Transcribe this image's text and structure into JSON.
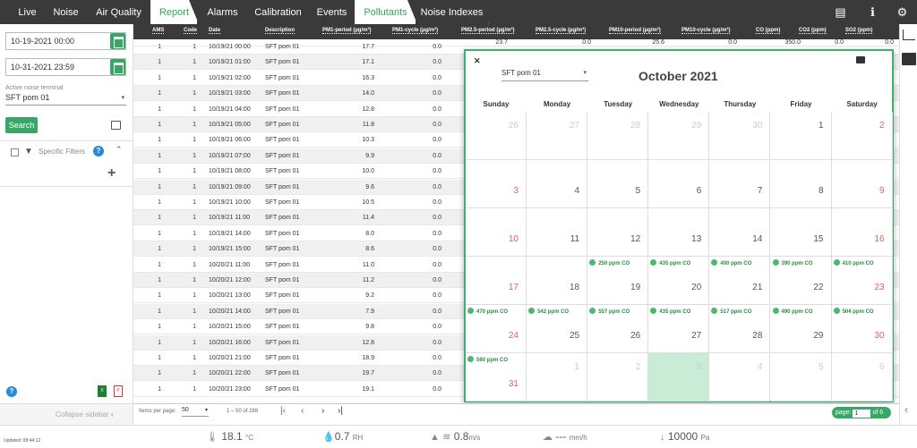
{
  "tabs": [
    {
      "label": "Live"
    },
    {
      "label": "Noise"
    },
    {
      "label": "Air Quality"
    },
    {
      "label": "Report"
    },
    {
      "label": "Alarms"
    },
    {
      "label": "Calibration"
    },
    {
      "label": "Events"
    },
    {
      "label": "Pollutants"
    },
    {
      "label": "Noise Indexes"
    }
  ],
  "active_tabs": [
    "Report",
    "Pollutants"
  ],
  "topbar_icons": [
    "id-card-icon",
    "info-icon",
    "gear-icon"
  ],
  "sidebar": {
    "date_from": "10-19-2021 00:00",
    "date_to": "10-31-2021 23:59",
    "terminal_label": "Active noise terminal",
    "terminal_value": "SFT pom 01",
    "search_label": "Search",
    "filters_label": "Specific Filters",
    "collapse_label": "Collapse sidebar"
  },
  "table": {
    "columns": [
      "AMS",
      "Code",
      "Date",
      "Description",
      "PM1-period (µg/m³)",
      "PM1-cycle (µg/m³)",
      "PM2.5-period (µg/m³)",
      "PM2.5-cycle (µg/m³)",
      "PM10-period (µg/m³)",
      "PM10-cycle (µg/m³)",
      "CO (ppm)",
      "CO2 (ppm)",
      "SO2 (ppm)"
    ],
    "partial_first_row": {
      "pm25_period": "23.7",
      "pm25_cycle": "0.0",
      "pm10_period": "25.6",
      "pm10_cycle": "0.0",
      "co": "350.0",
      "co2": "0.0",
      "so2": "0.0"
    },
    "rows": [
      {
        "ams": "1",
        "code": "1",
        "date": "10/19/21 00:00",
        "desc": "SFT pom 01",
        "pm1p": "17.7",
        "pm1c": "0.0"
      },
      {
        "ams": "1",
        "code": "1",
        "date": "10/19/21 01:00",
        "desc": "SFT pom 01",
        "pm1p": "17.1",
        "pm1c": "0.0"
      },
      {
        "ams": "1",
        "code": "1",
        "date": "10/19/21 02:00",
        "desc": "SFT pom 01",
        "pm1p": "16.3",
        "pm1c": "0.0"
      },
      {
        "ams": "1",
        "code": "1",
        "date": "10/19/21 03:00",
        "desc": "SFT pom 01",
        "pm1p": "14.0",
        "pm1c": "0.0"
      },
      {
        "ams": "1",
        "code": "1",
        "date": "10/19/21 04:00",
        "desc": "SFT pom 01",
        "pm1p": "12.8",
        "pm1c": "0.0"
      },
      {
        "ams": "1",
        "code": "1",
        "date": "10/19/21 05:00",
        "desc": "SFT pom 01",
        "pm1p": "11.8",
        "pm1c": "0.0"
      },
      {
        "ams": "1",
        "code": "1",
        "date": "10/19/21 06:00",
        "desc": "SFT pom 01",
        "pm1p": "10.3",
        "pm1c": "0.0"
      },
      {
        "ams": "1",
        "code": "1",
        "date": "10/19/21 07:00",
        "desc": "SFT pom 01",
        "pm1p": "9.9",
        "pm1c": "0.0"
      },
      {
        "ams": "1",
        "code": "1",
        "date": "10/19/21 08:00",
        "desc": "SFT pom 01",
        "pm1p": "10.0",
        "pm1c": "0.0"
      },
      {
        "ams": "1",
        "code": "1",
        "date": "10/19/21 09:00",
        "desc": "SFT pom 01",
        "pm1p": "9.6",
        "pm1c": "0.0"
      },
      {
        "ams": "1",
        "code": "1",
        "date": "10/19/21 10:00",
        "desc": "SFT pom 01",
        "pm1p": "10.5",
        "pm1c": "0.0"
      },
      {
        "ams": "1",
        "code": "1",
        "date": "10/19/21 11:00",
        "desc": "SFT pom 01",
        "pm1p": "11.4",
        "pm1c": "0.0"
      },
      {
        "ams": "1",
        "code": "1",
        "date": "10/19/21 14:00",
        "desc": "SFT pom 01",
        "pm1p": "8.0",
        "pm1c": "0.0"
      },
      {
        "ams": "1",
        "code": "1",
        "date": "10/19/21 15:00",
        "desc": "SFT pom 01",
        "pm1p": "8.6",
        "pm1c": "0.0"
      },
      {
        "ams": "1",
        "code": "1",
        "date": "10/20/21 11:00",
        "desc": "SFT pom 01",
        "pm1p": "11.0",
        "pm1c": "0.0"
      },
      {
        "ams": "1",
        "code": "1",
        "date": "10/20/21 12:00",
        "desc": "SFT pom 01",
        "pm1p": "11.2",
        "pm1c": "0.0"
      },
      {
        "ams": "1",
        "code": "1",
        "date": "10/20/21 13:00",
        "desc": "SFT pom 01",
        "pm1p": "9.2",
        "pm1c": "0.0"
      },
      {
        "ams": "1",
        "code": "1",
        "date": "10/20/21 14:00",
        "desc": "SFT pom 01",
        "pm1p": "7.9",
        "pm1c": "0.0"
      },
      {
        "ams": "1",
        "code": "1",
        "date": "10/20/21 15:00",
        "desc": "SFT pom 01",
        "pm1p": "9.8",
        "pm1c": "0.0"
      },
      {
        "ams": "1",
        "code": "1",
        "date": "10/20/21 16:00",
        "desc": "SFT pom 01",
        "pm1p": "12.8",
        "pm1c": "0.0"
      },
      {
        "ams": "1",
        "code": "1",
        "date": "10/20/21 21:00",
        "desc": "SFT pom 01",
        "pm1p": "18.9",
        "pm1c": "0.0"
      },
      {
        "ams": "1",
        "code": "1",
        "date": "10/20/21 22:00",
        "desc": "SFT pom 01",
        "pm1p": "19.7",
        "pm1c": "0.0"
      },
      {
        "ams": "1",
        "code": "1",
        "date": "10/20/21 23:00",
        "desc": "SFT pom 01",
        "pm1p": "19.1",
        "pm1c": "0.0"
      }
    ]
  },
  "calendar": {
    "title": "October 2021",
    "terminal": "SFT pom 01",
    "weekdays": [
      "Sunday",
      "Monday",
      "Tuesday",
      "Wednesday",
      "Thursday",
      "Friday",
      "Saturday"
    ],
    "today": "3",
    "weeks": [
      [
        {
          "n": "26",
          "o": true
        },
        {
          "n": "27",
          "o": true
        },
        {
          "n": "28",
          "o": true
        },
        {
          "n": "29",
          "o": true
        },
        {
          "n": "30",
          "o": true
        },
        {
          "n": "1"
        },
        {
          "n": "2"
        }
      ],
      [
        {
          "n": "3"
        },
        {
          "n": "4"
        },
        {
          "n": "5"
        },
        {
          "n": "6"
        },
        {
          "n": "7"
        },
        {
          "n": "8"
        },
        {
          "n": "9"
        }
      ],
      [
        {
          "n": "10"
        },
        {
          "n": "11"
        },
        {
          "n": "12"
        },
        {
          "n": "13"
        },
        {
          "n": "14"
        },
        {
          "n": "15"
        },
        {
          "n": "16"
        }
      ],
      [
        {
          "n": "17"
        },
        {
          "n": "18"
        },
        {
          "n": "19",
          "ev": "250 ppm CO"
        },
        {
          "n": "20",
          "ev": "435 ppm CO"
        },
        {
          "n": "21",
          "ev": "400 ppm CO"
        },
        {
          "n": "22",
          "ev": "390 ppm CO"
        },
        {
          "n": "23",
          "ev": "410 ppm CO"
        }
      ],
      [
        {
          "n": "24",
          "ev": "470 ppm CO"
        },
        {
          "n": "25",
          "ev": "542 ppm CO"
        },
        {
          "n": "26",
          "ev": "557 ppm CO"
        },
        {
          "n": "27",
          "ev": "435 ppm CO"
        },
        {
          "n": "28",
          "ev": "517 ppm CO"
        },
        {
          "n": "29",
          "ev": "490 ppm CO"
        },
        {
          "n": "30",
          "ev": "504 ppm CO"
        }
      ],
      [
        {
          "n": "31",
          "ev": "560 ppm CO"
        },
        {
          "n": "1",
          "o": true
        },
        {
          "n": "2",
          "o": true
        },
        {
          "n": "3",
          "o": true,
          "big": true
        },
        {
          "n": "4",
          "o": true
        },
        {
          "n": "5",
          "o": true
        },
        {
          "n": "6",
          "o": true
        }
      ]
    ]
  },
  "footer": {
    "items_per_page_label": "Items per page:",
    "items_per_page": "50",
    "range": "1 – 50 of 288",
    "page_label": "page:",
    "page_value": "1",
    "page_of": "of 6"
  },
  "status": {
    "updated": "Updated: 08:44:12",
    "temp": "18.1",
    "temp_unit": "°C",
    "rh": "0.7",
    "rh_unit": "RH",
    "wind": "0.8",
    "wind_unit": "m/s",
    "rain": "---",
    "rain_unit": "mm/h",
    "pressure": "10000",
    "pressure_unit": "Pa"
  },
  "colors": {
    "accent": "#37a766",
    "topbar": "#3a3a3a",
    "weekend": "#e06060"
  }
}
